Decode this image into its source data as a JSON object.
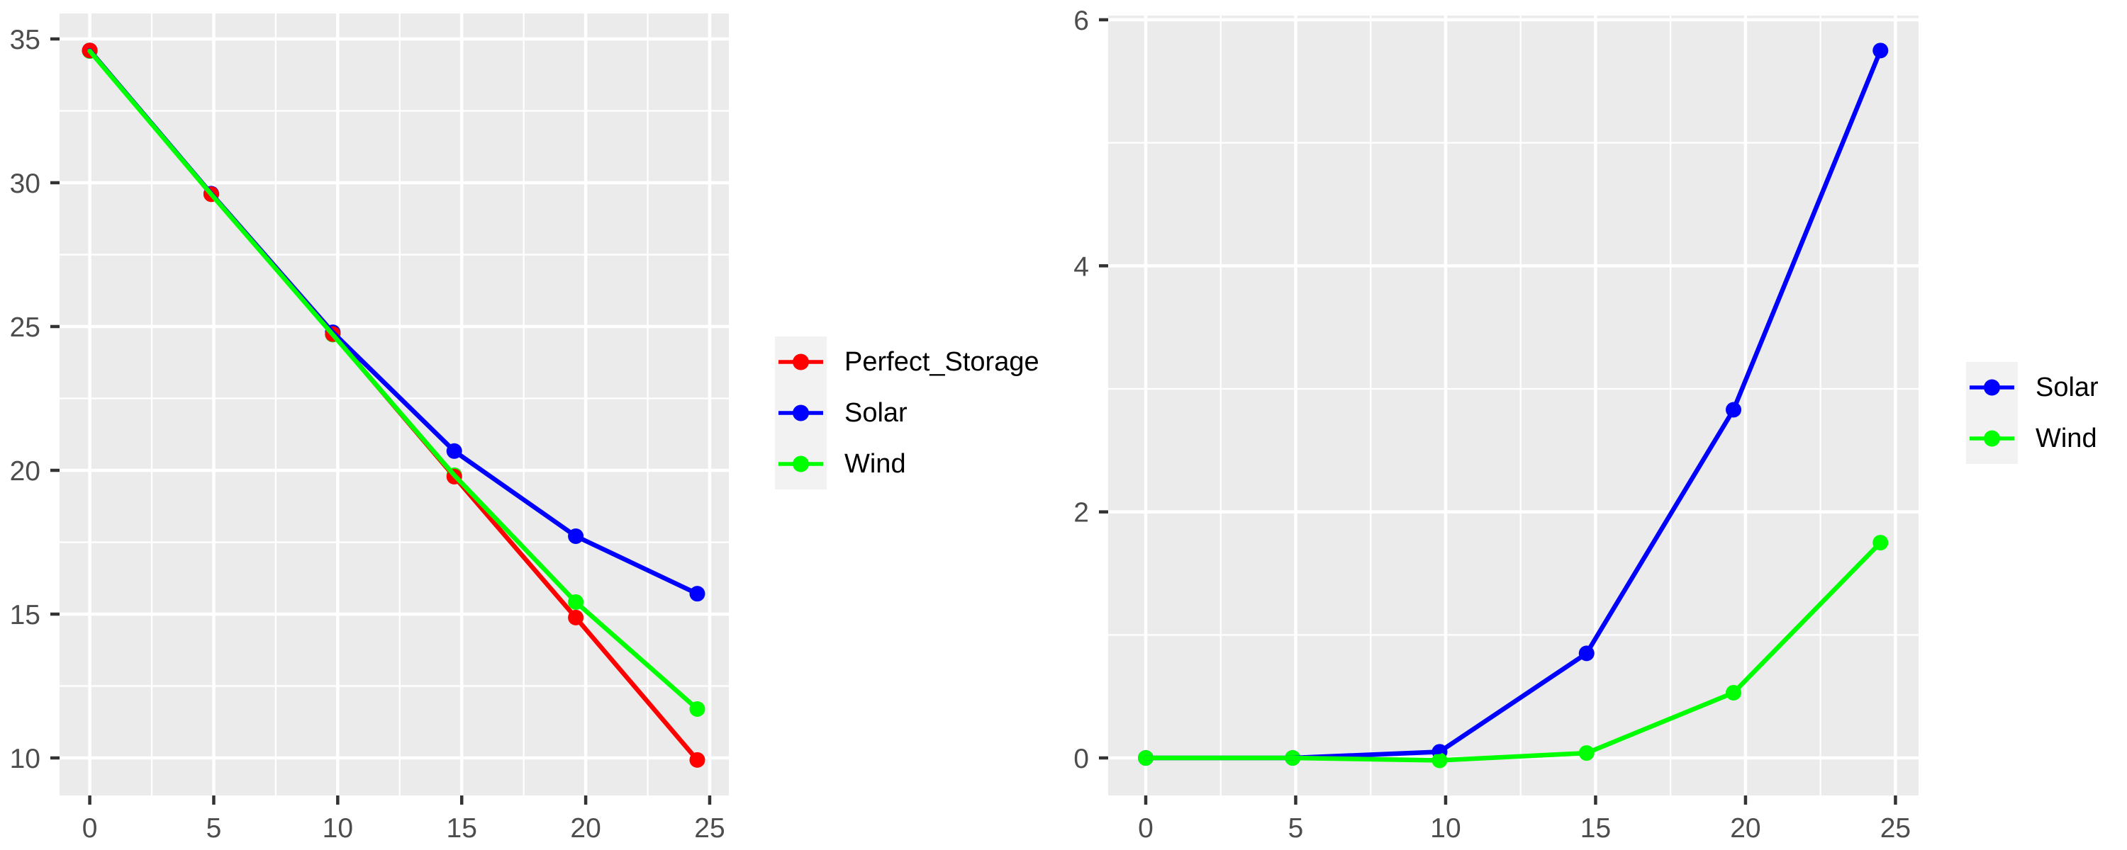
{
  "figure": {
    "background": "#FFFFFF",
    "description_left": "line chart of remaining value vs years for Perfect_Storage, Solar, Wind",
    "description_right": "line chart of difference from Perfect_Storage vs years for Solar, Wind"
  },
  "style": {
    "panel_bg": "#EBEBEB",
    "grid_color": "#FFFFFF",
    "tick_color": "#333333",
    "axis_text_color": "#4D4D4D",
    "legend_key_bg": "#F2F2F2",
    "legend_text_color": "#000000",
    "series_colors": {
      "Perfect_Storage": "#FF0000",
      "Solar": "#0000FF",
      "Wind": "#00FF00"
    }
  },
  "chart_data": [
    {
      "id": "left",
      "type": "line",
      "title": "",
      "xlabel": "",
      "ylabel": "",
      "x": [
        0,
        4.9,
        9.8,
        14.7,
        19.6,
        24.5
      ],
      "series": [
        {
          "name": "Perfect_Storage",
          "color": "#FF0000",
          "values": [
            34.6,
            29.6,
            24.74,
            19.78,
            14.88,
            9.93
          ]
        },
        {
          "name": "Solar",
          "color": "#0000FF",
          "values": [
            34.6,
            29.62,
            24.8,
            20.67,
            17.71,
            15.71
          ]
        },
        {
          "name": "Wind",
          "color": "#00FF00",
          "values": [
            34.58,
            29.6,
            24.72,
            19.83,
            15.42,
            11.7
          ]
        }
      ],
      "x_ticks": [
        0,
        5,
        10,
        15,
        20,
        25
      ],
      "x_minor": [
        2.5,
        7.5,
        12.5,
        17.5,
        22.5
      ],
      "y_ticks": [
        10,
        15,
        20,
        25,
        30,
        35
      ],
      "y_minor": [
        12.5,
        17.5,
        22.5,
        27.5,
        32.5
      ],
      "xlim": [
        -1.218,
        25.773
      ],
      "ylim": [
        8.695,
        35.886
      ],
      "grid": true,
      "legend_position": "right",
      "legend_order": [
        "Perfect_Storage",
        "Solar",
        "Wind"
      ],
      "line_order": [
        0,
        1,
        2
      ],
      "point_order": [
        2,
        1,
        0
      ]
    },
    {
      "id": "right",
      "type": "line",
      "title": "",
      "xlabel": "",
      "ylabel": "",
      "x": [
        0,
        4.9,
        9.8,
        14.7,
        19.6,
        24.5
      ],
      "series": [
        {
          "name": "Solar",
          "color": "#0000FF",
          "values": [
            0,
            0,
            0.05,
            0.85,
            2.83,
            5.75
          ]
        },
        {
          "name": "Wind",
          "color": "#00FF00",
          "values": [
            0,
            0,
            -0.02,
            0.04,
            0.53,
            1.75
          ]
        }
      ],
      "x_ticks": [
        0,
        5,
        10,
        15,
        20,
        25
      ],
      "x_minor": [
        2.5,
        7.5,
        12.5,
        17.5,
        22.5
      ],
      "y_ticks": [
        0,
        2,
        4,
        6
      ],
      "y_minor": [
        1,
        3,
        5
      ],
      "xlim": [
        -1.253,
        25.77
      ],
      "ylim": [
        -0.305,
        6.034
      ],
      "grid": true,
      "legend_position": "right",
      "legend_order": [
        "Solar",
        "Wind"
      ],
      "line_order": [
        0,
        1
      ],
      "point_order": [
        0,
        1
      ]
    }
  ]
}
